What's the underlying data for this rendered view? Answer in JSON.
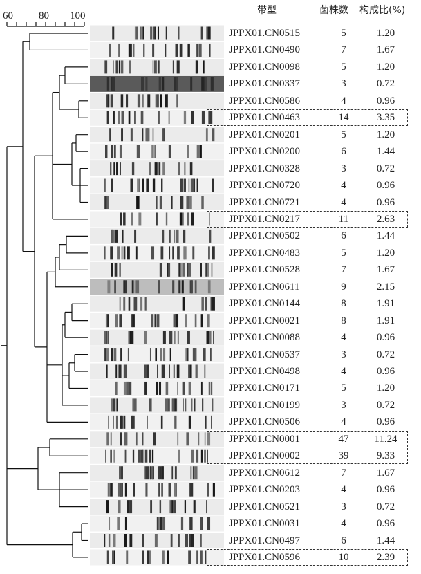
{
  "scale": {
    "ticks": [
      "60",
      "80",
      "100"
    ]
  },
  "headers": {
    "pattern": "带型",
    "count": "菌株数",
    "percent": "构成比(%)"
  },
  "rows": [
    {
      "pattern": "JPPX01.CN0515",
      "count": "5",
      "percent": "1.20"
    },
    {
      "pattern": "JPPX01.CN0490",
      "count": "7",
      "percent": "1.67"
    },
    {
      "pattern": "JPPX01.CN0098",
      "count": "5",
      "percent": "1.20"
    },
    {
      "pattern": "JPPX01.CN0337",
      "count": "3",
      "percent": "0.72"
    },
    {
      "pattern": "JPPX01.CN0586",
      "count": "4",
      "percent": "0.96"
    },
    {
      "pattern": "JPPX01.CN0463",
      "count": "14",
      "percent": "3.35"
    },
    {
      "pattern": "JPPX01.CN0201",
      "count": "5",
      "percent": "1.20"
    },
    {
      "pattern": "JPPX01.CN0200",
      "count": "6",
      "percent": "1.44"
    },
    {
      "pattern": "JPPX01.CN0328",
      "count": "3",
      "percent": "0.72"
    },
    {
      "pattern": "JPPX01.CN0720",
      "count": "4",
      "percent": "0.96"
    },
    {
      "pattern": "JPPX01.CN0721",
      "count": "4",
      "percent": "0.96"
    },
    {
      "pattern": "JPPX01.CN0217",
      "count": "11",
      "percent": "2.63"
    },
    {
      "pattern": "JPPX01.CN0502",
      "count": "6",
      "percent": "1.44"
    },
    {
      "pattern": "JPPX01.CN0483",
      "count": "5",
      "percent": "1.20"
    },
    {
      "pattern": "JPPX01.CN0528",
      "count": "7",
      "percent": "1.67"
    },
    {
      "pattern": "JPPX01.CN0611",
      "count": "9",
      "percent": "2.15"
    },
    {
      "pattern": "JPPX01.CN0144",
      "count": "8",
      "percent": "1.91"
    },
    {
      "pattern": "JPPX01.CN0021",
      "count": "8",
      "percent": "1.91"
    },
    {
      "pattern": "JPPX01.CN0088",
      "count": "4",
      "percent": "0.96"
    },
    {
      "pattern": "JPPX01.CN0537",
      "count": "3",
      "percent": "0.72"
    },
    {
      "pattern": "JPPX01.CN0498",
      "count": "4",
      "percent": "0.96"
    },
    {
      "pattern": "JPPX01.CN0171",
      "count": "5",
      "percent": "1.20"
    },
    {
      "pattern": "JPPX01.CN0199",
      "count": "3",
      "percent": "0.72"
    },
    {
      "pattern": "JPPX01.CN0506",
      "count": "4",
      "percent": "0.96"
    },
    {
      "pattern": "JPPX01.CN0001",
      "count": "47",
      "percent": "11.24"
    },
    {
      "pattern": "JPPX01.CN0002",
      "count": "39",
      "percent": "9.33"
    },
    {
      "pattern": "JPPX01.CN0612",
      "count": "7",
      "percent": "1.67"
    },
    {
      "pattern": "JPPX01.CN0203",
      "count": "4",
      "percent": "0.96"
    },
    {
      "pattern": "JPPX01.CN0521",
      "count": "3",
      "percent": "0.72"
    },
    {
      "pattern": "JPPX01.CN0031",
      "count": "4",
      "percent": "0.96"
    },
    {
      "pattern": "JPPX01.CN0497",
      "count": "6",
      "percent": "1.44"
    },
    {
      "pattern": "JPPX01.CN0596",
      "count": "10",
      "percent": "2.39"
    }
  ],
  "highlighted_patterns": [
    "JPPX01.CN0463",
    "JPPX01.CN0217",
    "JPPX01.CN0001",
    "JPPX01.CN0002",
    "JPPX01.CN0596"
  ]
}
